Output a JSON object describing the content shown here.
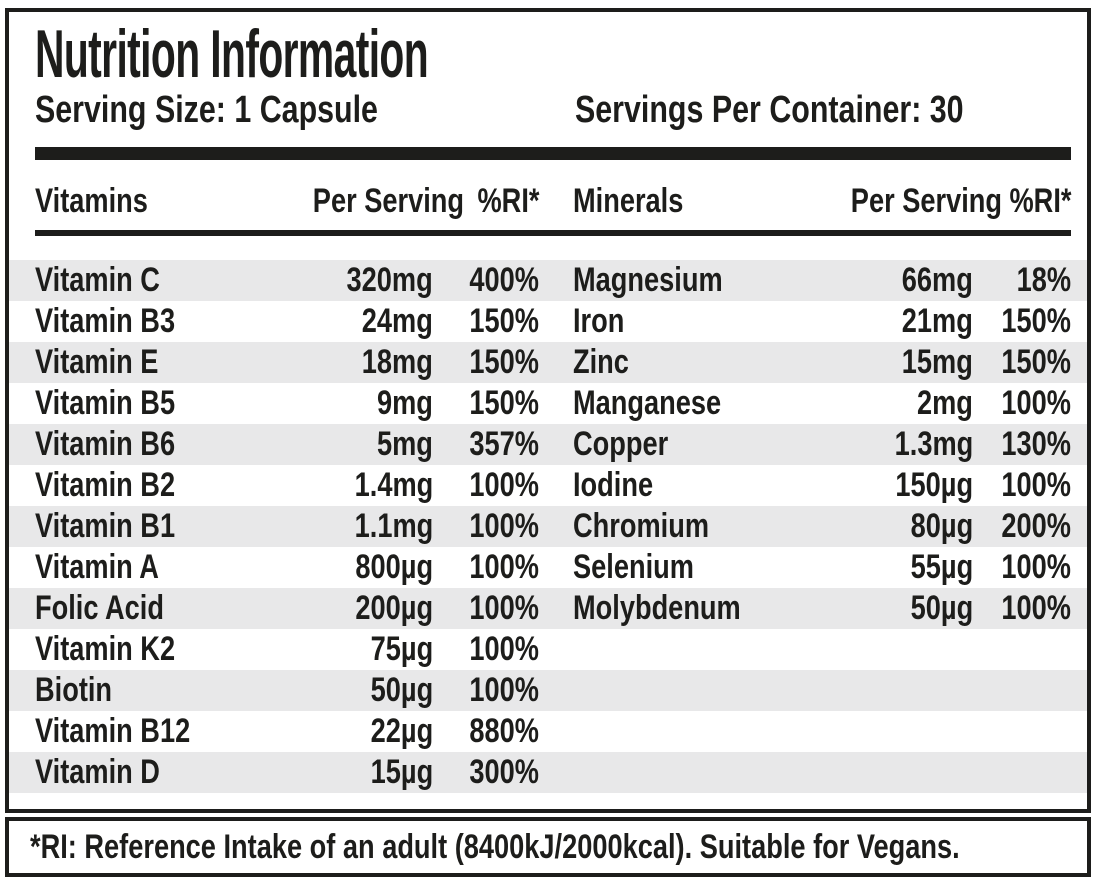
{
  "label": {
    "title": "Nutrition Information",
    "serving_size": "Serving Size: 1 Capsule",
    "servings_per_container": "Servings Per Container: 30",
    "footnote": "*RI: Reference Intake of an adult (8400kJ/2000kcal). Suitable for Vegans."
  },
  "table": {
    "vitamins_header": {
      "name": "Vitamins",
      "per_serving": "Per Serving",
      "ri": "%RI*"
    },
    "minerals_header": {
      "name": "Minerals",
      "per_serving": "Per Serving",
      "ri": "%RI*"
    },
    "rows": [
      {
        "vitamin": "Vitamin C",
        "v_amount": "320mg",
        "v_ri": "400%",
        "mineral": "Magnesium",
        "m_amount": "66mg",
        "m_ri": "18%"
      },
      {
        "vitamin": "Vitamin B3",
        "v_amount": "24mg",
        "v_ri": "150%",
        "mineral": "Iron",
        "m_amount": "21mg",
        "m_ri": "150%"
      },
      {
        "vitamin": "Vitamin E",
        "v_amount": "18mg",
        "v_ri": "150%",
        "mineral": "Zinc",
        "m_amount": "15mg",
        "m_ri": "150%"
      },
      {
        "vitamin": "Vitamin B5",
        "v_amount": "9mg",
        "v_ri": "150%",
        "mineral": "Manganese",
        "m_amount": "2mg",
        "m_ri": "100%"
      },
      {
        "vitamin": "Vitamin B6",
        "v_amount": "5mg",
        "v_ri": "357%",
        "mineral": "Copper",
        "m_amount": "1.3mg",
        "m_ri": "130%"
      },
      {
        "vitamin": "Vitamin B2",
        "v_amount": "1.4mg",
        "v_ri": "100%",
        "mineral": "Iodine",
        "m_amount": "150µg",
        "m_ri": "100%"
      },
      {
        "vitamin": "Vitamin B1",
        "v_amount": "1.1mg",
        "v_ri": "100%",
        "mineral": "Chromium",
        "m_amount": "80µg",
        "m_ri": "200%"
      },
      {
        "vitamin": "Vitamin A",
        "v_amount": "800µg",
        "v_ri": "100%",
        "mineral": "Selenium",
        "m_amount": "55µg",
        "m_ri": "100%"
      },
      {
        "vitamin": "Folic Acid",
        "v_amount": "200µg",
        "v_ri": "100%",
        "mineral": "Molybdenum",
        "m_amount": "50µg",
        "m_ri": "100%"
      },
      {
        "vitamin": "Vitamin K2",
        "v_amount": "75µg",
        "v_ri": "100%",
        "mineral": "",
        "m_amount": "",
        "m_ri": ""
      },
      {
        "vitamin": "Biotin",
        "v_amount": "50µg",
        "v_ri": "100%",
        "mineral": "",
        "m_amount": "",
        "m_ri": ""
      },
      {
        "vitamin": "Vitamin B12",
        "v_amount": "22µg",
        "v_ri": "880%",
        "mineral": "",
        "m_amount": "",
        "m_ri": ""
      },
      {
        "vitamin": "Vitamin D",
        "v_amount": "15µg",
        "v_ri": "300%",
        "mineral": "",
        "m_amount": "",
        "m_ri": ""
      }
    ]
  },
  "colors": {
    "text": "#1d1d1b",
    "stripe": "#e8e8e9",
    "background": "#ffffff"
  }
}
